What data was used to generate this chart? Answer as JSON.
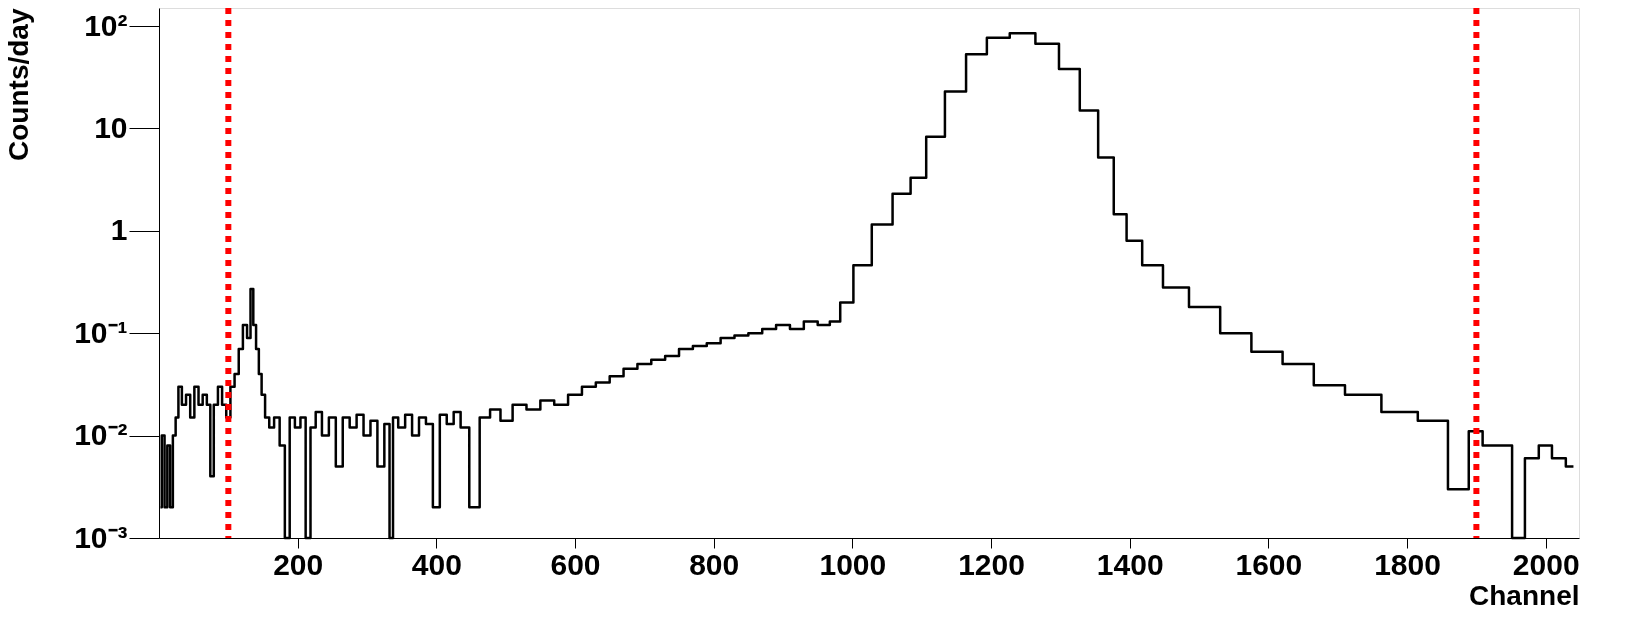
{
  "chart_data": {
    "type": "step",
    "xlabel": "Channel",
    "ylabel": "Counts/day",
    "log": "y",
    "grid": false,
    "marker": "none",
    "line_style": "solid",
    "xlim": [
      0,
      2048
    ],
    "xticks": [
      200,
      400,
      600,
      800,
      1000,
      1200,
      1400,
      1600,
      1800,
      2000
    ],
    "ylim": [
      0.001,
      150
    ],
    "yticks": [
      {
        "value": 0.001,
        "label": "10⁻³"
      },
      {
        "value": 0.01,
        "label": "10⁻²"
      },
      {
        "value": 0.1,
        "label": "10⁻¹"
      },
      1,
      10,
      {
        "value": 100,
        "label": "10²"
      }
    ],
    "ref_lines": [
      {
        "axis": "x",
        "value": 100,
        "color": "#ff0000",
        "line_style": "dashed"
      },
      {
        "axis": "x",
        "value": 1900,
        "color": "#ff0000",
        "line_style": "dashed"
      }
    ],
    "series": [
      {
        "color": "#000000",
        "x": [
          2,
          6,
          10,
          14,
          18,
          22,
          26,
          30,
          36,
          42,
          48,
          54,
          60,
          66,
          72,
          76,
          82,
          88,
          94,
          100,
          106,
          112,
          118,
          124,
          130,
          134,
          138,
          142,
          146,
          150,
          156,
          162,
          170,
          178,
          185,
          192,
          200,
          208,
          215,
          222,
          230,
          240,
          250,
          260,
          270,
          280,
          290,
          300,
          310,
          320,
          330,
          335,
          340,
          350,
          360,
          370,
          380,
          390,
          400,
          410,
          420,
          430,
          440,
          455,
          470,
          485,
          500,
          520,
          540,
          560,
          580,
          600,
          620,
          640,
          660,
          680,
          700,
          720,
          740,
          760,
          780,
          800,
          820,
          840,
          860,
          880,
          900,
          920,
          940,
          960,
          975,
          990,
          1013,
          1043,
          1073,
          1095,
          1118,
          1149,
          1179,
          1209,
          1245,
          1283,
          1313,
          1343,
          1366,
          1388,
          1403,
          1433,
          1463,
          1508,
          1553,
          1598,
          1643,
          1688,
          1733,
          1793,
          1838,
          1880,
          1898,
          1920,
          1943,
          1960,
          1980,
          2000,
          2018,
          2040
        ],
        "values": [
          0.002,
          0.01,
          0.002,
          0.008,
          0.002,
          0.01,
          0.015,
          0.03,
          0.02,
          0.025,
          0.015,
          0.03,
          0.02,
          0.025,
          0.02,
          0.004,
          0.02,
          0.03,
          0.02,
          0.015,
          0.03,
          0.04,
          0.07,
          0.12,
          0.09,
          0.27,
          0.12,
          0.07,
          0.04,
          0.025,
          0.015,
          0.012,
          0.015,
          0.008,
          0.001,
          0.015,
          0.012,
          0.015,
          0.001,
          0.012,
          0.017,
          0.01,
          0.015,
          0.005,
          0.015,
          0.012,
          0.016,
          0.01,
          0.014,
          0.005,
          0.013,
          0.001,
          0.015,
          0.012,
          0.016,
          0.01,
          0.015,
          0.013,
          0.002,
          0.016,
          0.013,
          0.017,
          0.012,
          0.002,
          0.015,
          0.018,
          0.014,
          0.02,
          0.018,
          0.022,
          0.02,
          0.025,
          0.03,
          0.033,
          0.038,
          0.045,
          0.05,
          0.055,
          0.06,
          0.07,
          0.075,
          0.08,
          0.09,
          0.095,
          0.1,
          0.11,
          0.12,
          0.11,
          0.13,
          0.12,
          0.13,
          0.2,
          0.46,
          1.15,
          2.3,
          3.3,
          8.3,
          23,
          53,
          77,
          85,
          67,
          38,
          15,
          5.2,
          1.45,
          0.8,
          0.46,
          0.28,
          0.18,
          0.1,
          0.066,
          0.05,
          0.031,
          0.025,
          0.017,
          0.014,
          0.003,
          0.011,
          0.008,
          0.008,
          0.001,
          0.006,
          0.008,
          0.006,
          0.005
        ]
      }
    ]
  }
}
